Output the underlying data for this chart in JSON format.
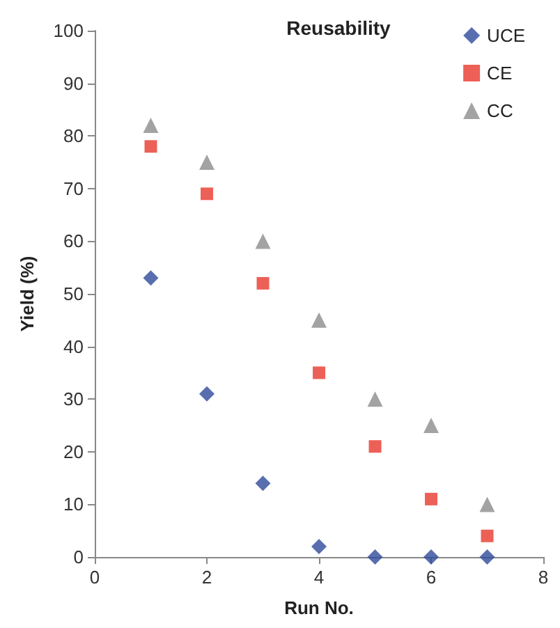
{
  "chart_data": {
    "type": "scatter",
    "title": "Reusability",
    "xlabel": "Run No.",
    "ylabel": "Yield (%)",
    "x": [
      1,
      2,
      3,
      4,
      5,
      6,
      7
    ],
    "series": [
      {
        "name": "UCE",
        "color": "#2e4a9a",
        "marker": "diamond",
        "values": [
          53,
          31,
          14,
          2,
          0,
          0,
          0
        ]
      },
      {
        "name": "CE",
        "color": "#e8382d",
        "marker": "square",
        "values": [
          78,
          69,
          52,
          35,
          21,
          11,
          4
        ]
      },
      {
        "name": "CC",
        "color": "#8c8c8c",
        "marker": "triangle",
        "values": [
          82,
          75,
          60,
          45,
          30,
          25,
          10
        ]
      }
    ],
    "xlim": [
      0,
      8
    ],
    "xticks": [
      0,
      2,
      4,
      6,
      8
    ],
    "ylim": [
      0,
      100
    ],
    "yticks": [
      0,
      10,
      20,
      30,
      40,
      50,
      60,
      70,
      80,
      90,
      100
    ],
    "grid": false,
    "legend": "top right"
  }
}
